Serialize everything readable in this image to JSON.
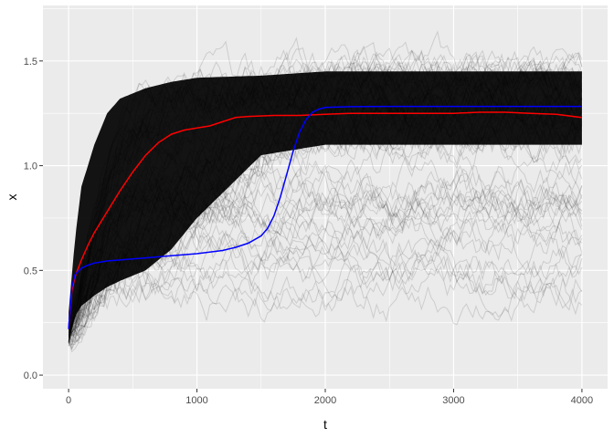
{
  "chart_data": {
    "type": "line",
    "title": "",
    "xlabel": "t",
    "ylabel": "x",
    "xlim": [
      -200,
      4200
    ],
    "ylim": [
      -0.065,
      1.765
    ],
    "x_ticks": [
      0,
      1000,
      2000,
      3000,
      4000
    ],
    "x_tick_labels": [
      "0",
      "1000",
      "2000",
      "3000",
      "4000"
    ],
    "y_ticks": [
      0.0,
      0.5,
      1.0,
      1.5
    ],
    "y_tick_labels": [
      "0.0",
      "0.5",
      "1.0",
      "1.5"
    ],
    "grid": true,
    "legend": "none",
    "panel_background": "#ebebeb",
    "grid_color": "#ffffff",
    "simulation_band": {
      "description_color": "#000000",
      "x": [
        0,
        50,
        100,
        200,
        300,
        400,
        600,
        800,
        1000,
        1500,
        2000,
        2500,
        3000,
        3500,
        4000
      ],
      "dense_low": [
        0.15,
        0.28,
        0.33,
        0.38,
        0.42,
        0.45,
        0.5,
        0.6,
        0.75,
        1.05,
        1.1,
        1.1,
        1.1,
        1.1,
        1.1
      ],
      "dense_high": [
        0.3,
        0.65,
        0.9,
        1.1,
        1.25,
        1.32,
        1.37,
        1.4,
        1.42,
        1.43,
        1.45,
        1.45,
        1.45,
        1.45,
        1.45
      ]
    },
    "series": [
      {
        "color": "#ff0000",
        "x": [
          0,
          25,
          50,
          100,
          150,
          200,
          300,
          400,
          500,
          600,
          700,
          800,
          900,
          1000,
          1100,
          1200,
          1300,
          1400,
          1600,
          1800,
          2000,
          2200,
          2400,
          2600,
          2800,
          3000,
          3200,
          3400,
          3600,
          3800,
          4000
        ],
        "y": [
          0.22,
          0.4,
          0.47,
          0.55,
          0.62,
          0.68,
          0.78,
          0.88,
          0.97,
          1.05,
          1.11,
          1.15,
          1.17,
          1.18,
          1.19,
          1.21,
          1.23,
          1.235,
          1.24,
          1.24,
          1.245,
          1.25,
          1.25,
          1.25,
          1.25,
          1.25,
          1.255,
          1.255,
          1.25,
          1.245,
          1.23
        ]
      },
      {
        "color": "#0000ff",
        "x": [
          0,
          25,
          50,
          100,
          150,
          200,
          300,
          400,
          600,
          800,
          1000,
          1200,
          1300,
          1400,
          1500,
          1550,
          1600,
          1650,
          1700,
          1750,
          1800,
          1850,
          1900,
          1950,
          2000,
          2100,
          2200,
          2500,
          3000,
          3500,
          4000
        ],
        "y": [
          0.22,
          0.42,
          0.48,
          0.51,
          0.525,
          0.535,
          0.545,
          0.55,
          0.56,
          0.57,
          0.58,
          0.595,
          0.61,
          0.63,
          0.665,
          0.7,
          0.76,
          0.85,
          0.96,
          1.07,
          1.16,
          1.22,
          1.255,
          1.27,
          1.278,
          1.28,
          1.282,
          1.283,
          1.283,
          1.283,
          1.283
        ]
      }
    ]
  }
}
